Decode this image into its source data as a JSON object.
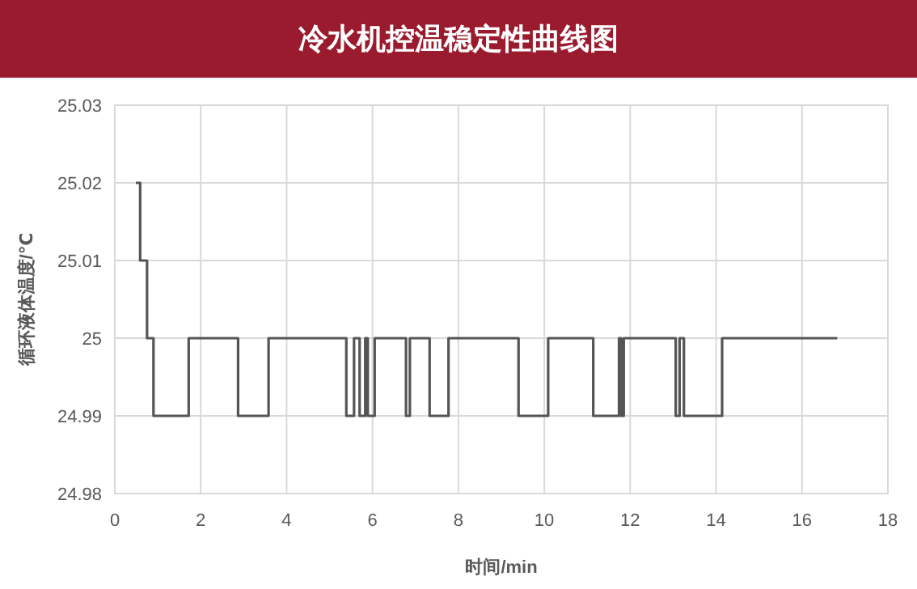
{
  "chart_data": {
    "type": "step",
    "title": "冷水机控温稳定性曲线图",
    "xlabel": "时间/min",
    "ylabel": "循环液体温度/℃",
    "xlim": [
      0,
      18
    ],
    "xticks": [
      0,
      2,
      4,
      6,
      8,
      10,
      12,
      14,
      16,
      18
    ],
    "ylim": [
      24.98,
      25.03
    ],
    "yticks": [
      24.98,
      24.99,
      25,
      25.01,
      25.02,
      25.03
    ],
    "grid": true,
    "series": [
      {
        "color": "#555555",
        "x": [
          0.49,
          0.59,
          0.75,
          0.9,
          1.72,
          2.87,
          3.58,
          5.39,
          5.57,
          5.7,
          5.83,
          5.89,
          6.05,
          6.78,
          6.87,
          7.33,
          7.77,
          9.4,
          10.09,
          11.14,
          11.74,
          11.79,
          11.85,
          13.06,
          13.15,
          13.25,
          14.14,
          16.82
        ],
        "values": [
          25.02,
          25.01,
          25,
          24.99,
          25,
          24.99,
          25,
          24.99,
          25,
          24.99,
          25,
          24.99,
          25,
          24.99,
          25,
          24.99,
          25,
          24.99,
          25,
          24.99,
          25,
          24.99,
          25,
          24.99,
          25,
          24.99,
          25,
          25
        ]
      }
    ]
  }
}
